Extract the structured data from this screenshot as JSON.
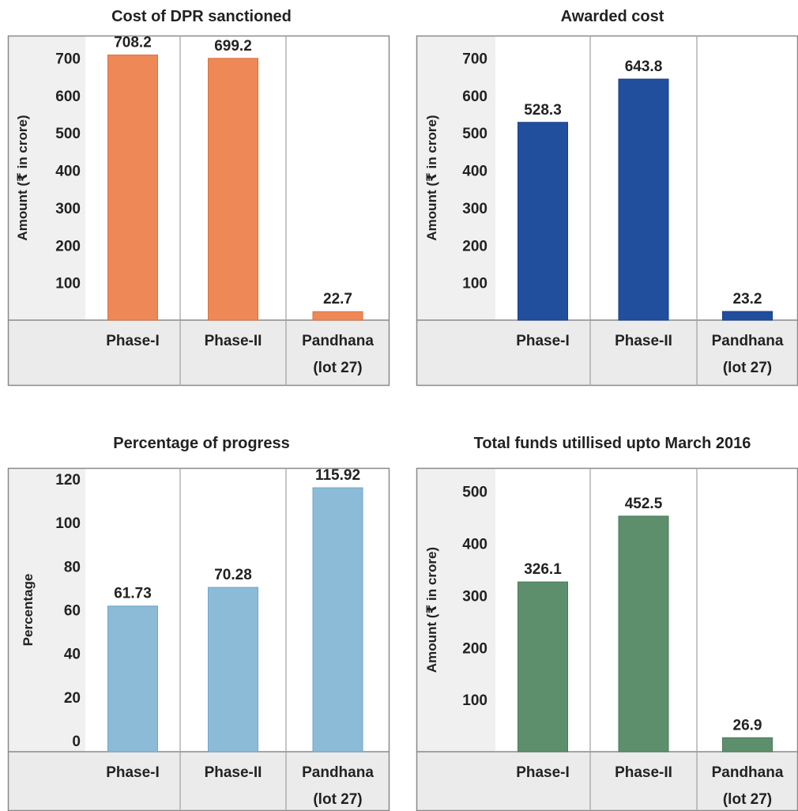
{
  "chart_data": [
    {
      "type": "bar",
      "title": "Cost of DPR sanctioned",
      "ylabel": "Amount (₹ in crore)",
      "categories": [
        [
          "Phase-I"
        ],
        [
          "Phase-II"
        ],
        [
          "Pandhana",
          "(lot 27)"
        ]
      ],
      "values": [
        708.2,
        699.2,
        22.7
      ],
      "value_labels": [
        "708.2",
        "699.2",
        "22.7"
      ],
      "yticks": [
        100,
        200,
        300,
        400,
        500,
        600,
        700
      ],
      "ylim": [
        0,
        760
      ],
      "color": "#ee8857",
      "edge_color": "#d9733f",
      "grid": false
    },
    {
      "type": "bar",
      "title": "Awarded cost",
      "ylabel": "Amount (₹ in crore)",
      "categories": [
        [
          "Phase-I"
        ],
        [
          "Phase-II"
        ],
        [
          "Pandhana",
          "(lot 27)"
        ]
      ],
      "values": [
        528.3,
        643.8,
        23.2
      ],
      "value_labels": [
        "528.3",
        "643.8",
        "23.2"
      ],
      "yticks": [
        100,
        200,
        300,
        400,
        500,
        600,
        700
      ],
      "ylim": [
        0,
        760
      ],
      "color": "#214f9e",
      "edge_color": "#163f85",
      "grid": false
    },
    {
      "type": "bar",
      "title": "Percentage of progress",
      "ylabel": "Percentage",
      "categories": [
        [
          "Phase-I"
        ],
        [
          "Phase-II"
        ],
        [
          "Pandhana",
          "(lot 27)"
        ]
      ],
      "values": [
        61.73,
        70.28,
        115.92
      ],
      "value_labels": [
        "61.73",
        "70.28",
        "115.92"
      ],
      "yticks": [
        0,
        20,
        40,
        60,
        80,
        100,
        120
      ],
      "ylim": [
        -5,
        125
      ],
      "color": "#8cbbd8",
      "edge_color": "#6fa6c8",
      "grid": false
    },
    {
      "type": "bar",
      "title": "Total funds utillised upto March 2016",
      "ylabel": "Amount (₹ in crore)",
      "categories": [
        [
          "Phase-I"
        ],
        [
          "Phase-II"
        ],
        [
          "Pandhana",
          "(lot 27)"
        ]
      ],
      "values": [
        326.1,
        452.5,
        26.9
      ],
      "value_labels": [
        "326.1",
        "452.5",
        "26.9"
      ],
      "yticks": [
        100,
        200,
        300,
        400,
        500
      ],
      "ylim": [
        0,
        545
      ],
      "color": "#5e8f6c",
      "edge_color": "#4a7a58",
      "grid": false
    }
  ]
}
